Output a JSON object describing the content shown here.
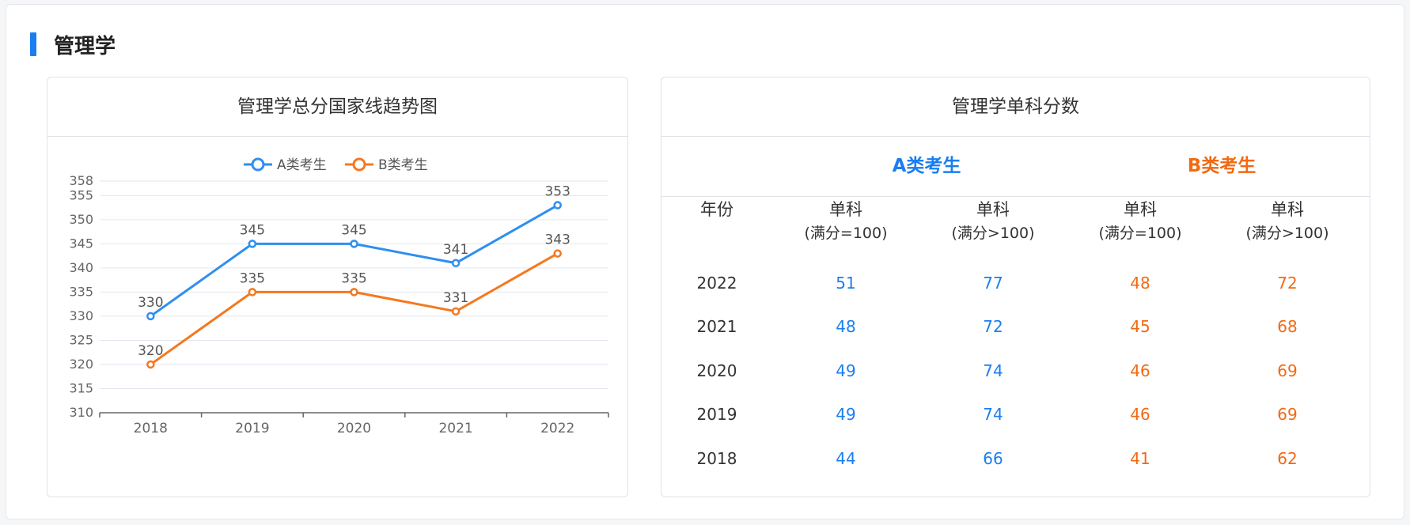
{
  "section": {
    "title": "管理学"
  },
  "chart_panel": {
    "title": "管理学总分国家线趋势图"
  },
  "table_panel": {
    "title": "管理学单科分数",
    "group_a": "A类考生",
    "group_b": "B类考生",
    "headers": {
      "year": "年份",
      "col1_main": "单科",
      "col1_sub": "(满分=100)",
      "col2_main": "单科",
      "col2_sub": "(满分>100)",
      "col3_main": "单科",
      "col3_sub": "(满分=100)",
      "col4_main": "单科",
      "col4_sub": "(满分>100)"
    },
    "rows": [
      {
        "year": "2022",
        "a1": "51",
        "a2": "77",
        "b1": "48",
        "b2": "72"
      },
      {
        "year": "2021",
        "a1": "48",
        "a2": "72",
        "b1": "45",
        "b2": "68"
      },
      {
        "year": "2020",
        "a1": "49",
        "a2": "74",
        "b1": "46",
        "b2": "69"
      },
      {
        "year": "2019",
        "a1": "49",
        "a2": "74",
        "b1": "46",
        "b2": "69"
      },
      {
        "year": "2018",
        "a1": "44",
        "a2": "66",
        "b1": "41",
        "b2": "62"
      }
    ]
  },
  "colors": {
    "accent": "#1a7ef2",
    "series_a": "#2e8ff0",
    "series_b": "#f5781e"
  },
  "chart_data": {
    "type": "line",
    "title": "",
    "xlabel": "",
    "ylabel": "",
    "categories": [
      "2018",
      "2019",
      "2020",
      "2021",
      "2022"
    ],
    "yticks": [
      310,
      315,
      320,
      325,
      330,
      335,
      340,
      345,
      350,
      355,
      358
    ],
    "ylim": [
      310,
      358
    ],
    "grid": true,
    "legend": "top-center",
    "series": [
      {
        "name": "A类考生",
        "values": [
          330,
          345,
          345,
          341,
          353
        ]
      },
      {
        "name": "B类考生",
        "values": [
          320,
          335,
          335,
          331,
          343
        ]
      }
    ]
  }
}
